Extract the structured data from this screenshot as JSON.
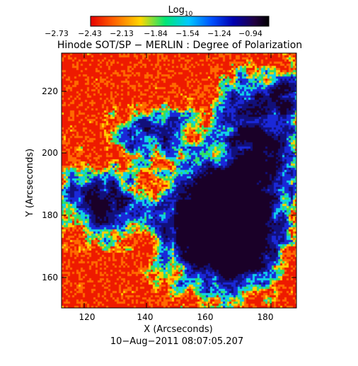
{
  "colorbar": {
    "label_base": "Log",
    "label_sub": "10",
    "ticks": [
      "−2.73",
      "−2.43",
      "−2.13",
      "−1.84",
      "−1.54",
      "−1.24",
      "−0.94"
    ],
    "colors": [
      "#e60000",
      "#ff5a00",
      "#ffd700",
      "#00e676",
      "#00c8ff",
      "#0050ff",
      "#0000b0",
      "#200040",
      "#000000"
    ]
  },
  "title": "Hinode SOT/SP − MERLIN : Degree of Polarization",
  "x_axis": {
    "label": "X (Arcseconds)",
    "ticks": [
      "120",
      "140",
      "160",
      "180"
    ]
  },
  "y_axis": {
    "label": "Y (Arcseconds)",
    "ticks": [
      "160",
      "180",
      "200",
      "220"
    ]
  },
  "timestamp": "10−Aug−2011 08:07:05.207",
  "palette": {
    "red": "#ee1a00",
    "orange": "#ff6a00",
    "yellow": "#ffd000",
    "green": "#30e060",
    "cyan": "#10d0e8",
    "blue": "#1a28d8",
    "navy": "#12107a",
    "dark": "#1a0028"
  }
}
